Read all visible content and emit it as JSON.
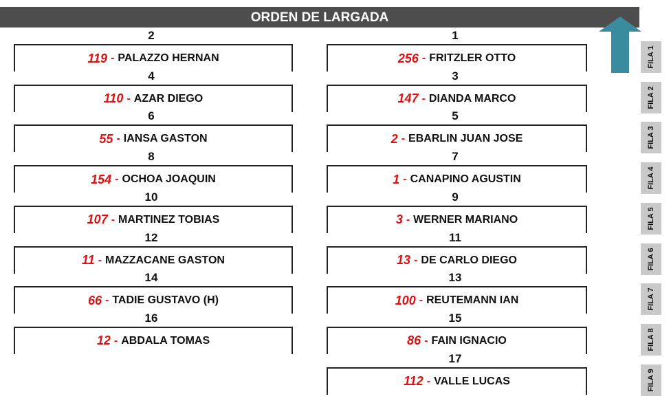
{
  "title": "ORDEN DE LARGADA",
  "arrow_color": "#3a8aa0",
  "separator": "-",
  "rows": [
    {
      "fila": "FILA 1",
      "left": {
        "pos": "2",
        "num": "119",
        "name": "PALAZZO HERNAN"
      },
      "right": {
        "pos": "1",
        "num": "256",
        "name": "FRITZLER OTTO"
      }
    },
    {
      "fila": "FILA 2",
      "left": {
        "pos": "4",
        "num": "110",
        "name": "AZAR DIEGO"
      },
      "right": {
        "pos": "3",
        "num": "147",
        "name": "DIANDA MARCO"
      }
    },
    {
      "fila": "FILA 3",
      "left": {
        "pos": "6",
        "num": "55",
        "name": "IANSA GASTON"
      },
      "right": {
        "pos": "5",
        "num": "2",
        "name": "EBARLIN JUAN JOSE"
      }
    },
    {
      "fila": "FILA 4",
      "left": {
        "pos": "8",
        "num": "154",
        "name": "OCHOA JOAQUIN"
      },
      "right": {
        "pos": "7",
        "num": "1",
        "name": "CANAPINO AGUSTIN"
      }
    },
    {
      "fila": "FILA 5",
      "left": {
        "pos": "10",
        "num": "107",
        "name": "MARTINEZ TOBIAS"
      },
      "right": {
        "pos": "9",
        "num": "3",
        "name": "WERNER MARIANO"
      }
    },
    {
      "fila": "FILA 6",
      "left": {
        "pos": "12",
        "num": "11",
        "name": "MAZZACANE  GASTON"
      },
      "right": {
        "pos": "11",
        "num": "13",
        "name": "DE CARLO DIEGO"
      }
    },
    {
      "fila": "FILA 7",
      "left": {
        "pos": "14",
        "num": "66",
        "name": "TADIE GUSTAVO (H)"
      },
      "right": {
        "pos": "13",
        "num": "100",
        "name": "REUTEMANN IAN"
      }
    },
    {
      "fila": "FILA 8",
      "left": {
        "pos": "16",
        "num": "12",
        "name": "ABDALA TOMAS"
      },
      "right": {
        "pos": "15",
        "num": "86",
        "name": "FAIN IGNACIO"
      }
    },
    {
      "fila": "FILA 9",
      "right": {
        "pos": "17",
        "num": "112",
        "name": "VALLE LUCAS"
      }
    }
  ]
}
